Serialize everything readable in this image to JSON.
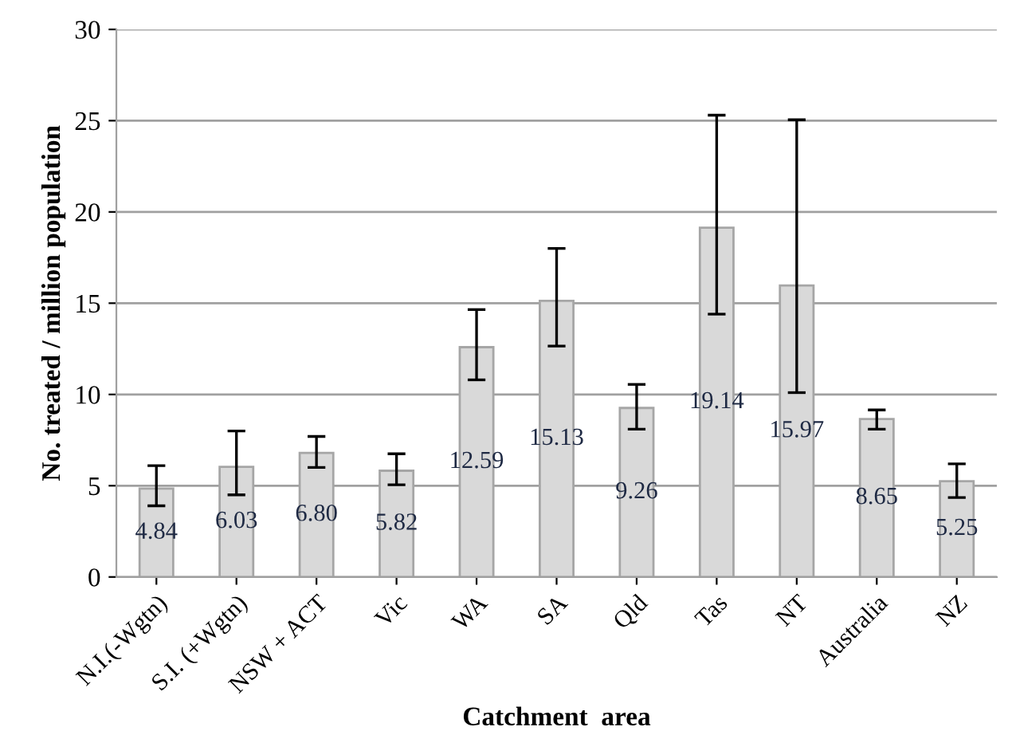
{
  "chart_data": {
    "type": "bar",
    "xlabel": "Catchment  area",
    "ylabel": "No. treated / million population",
    "categories": [
      "N.I.(-Wgtn)",
      "S.I. (+Wgtn)",
      "NSW + ACT",
      "Vic",
      "WA",
      "SA",
      "Qld",
      "Tas",
      "NT",
      "Australia",
      "NZ"
    ],
    "values": [
      4.84,
      6.03,
      6.8,
      5.82,
      12.59,
      15.13,
      9.26,
      19.14,
      15.97,
      8.65,
      5.25
    ],
    "value_labels": [
      "4.84",
      "6.03",
      "6.80",
      "5.82",
      "12.59",
      "15.13",
      "9.26",
      "19.14",
      "15.97",
      "8.65",
      "5.25"
    ],
    "errors": [
      [
        3.9,
        6.1
      ],
      [
        4.5,
        8.0
      ],
      [
        6.0,
        7.7
      ],
      [
        5.05,
        6.75
      ],
      [
        10.8,
        14.65
      ],
      [
        12.65,
        18.0
      ],
      [
        8.1,
        10.55
      ],
      [
        14.4,
        25.3
      ],
      [
        10.1,
        25.05
      ],
      [
        8.1,
        9.15
      ],
      [
        4.35,
        6.2
      ]
    ],
    "color": "#d9d9d9",
    "ylim": [
      0,
      30
    ],
    "yticks": [
      0,
      5,
      10,
      15,
      20,
      25,
      30
    ],
    "grid": "y",
    "legend": false
  }
}
